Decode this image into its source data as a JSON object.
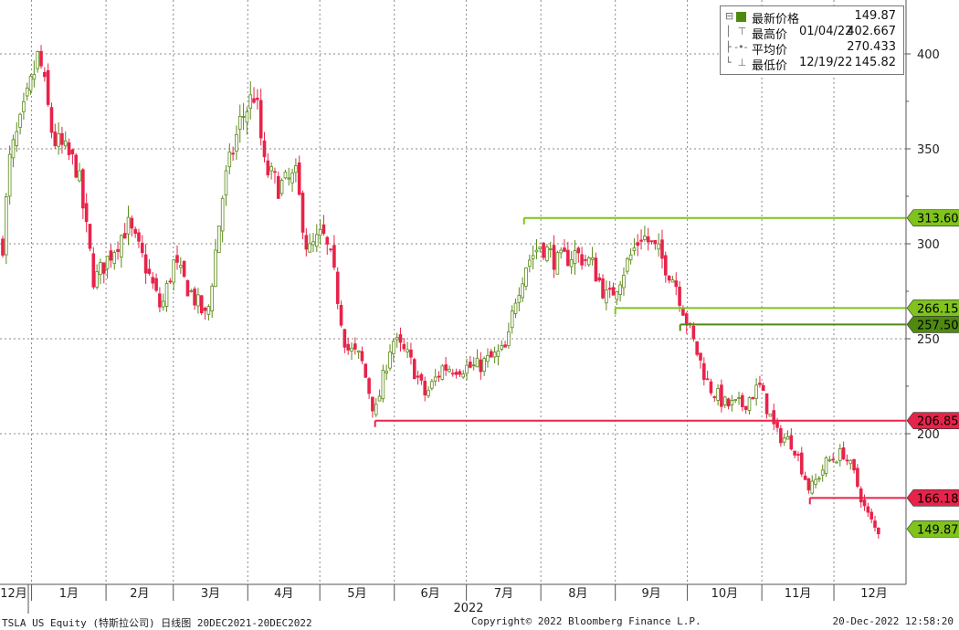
{
  "chart_data": {
    "type": "candlestick",
    "ticker_footer": "TSLA US Equity (特斯拉公司)  日线图 20DEC2021-20DEC2022",
    "copyright": "Copyright© 2022 Bloomberg Finance L.P.",
    "timestamp": "20-Dec-2022 12:58:20",
    "year_label": "2022",
    "x_ticks": [
      "12月",
      "1月",
      "2月",
      "3月",
      "4月",
      "5月",
      "6月",
      "7月",
      "8月",
      "9月",
      "10月",
      "11月",
      "12月"
    ],
    "y_ticks": [
      400,
      350,
      300,
      250,
      200
    ],
    "ylim": [
      120,
      420
    ],
    "colors": {
      "up": "#5a8a18",
      "down": "#e8234a",
      "grid": "#888888"
    },
    "legend": {
      "last_label": "最新价格",
      "last_value": "149.87",
      "high_label": "最高价",
      "high_date": "01/04/22",
      "high_value": "402.667",
      "avg_label": "平均价",
      "avg_value": "270.433",
      "low_label": "最低价",
      "low_date": "12/19/22",
      "low_value": "145.82"
    },
    "levels": [
      {
        "value": 313.607,
        "label": "313.607",
        "color": "#7fc31c",
        "from": "2022-07-25"
      },
      {
        "value": 266.15,
        "label": "266.15",
        "color": "#7fc31c",
        "from": "2022-09-01"
      },
      {
        "value": 257.5,
        "label": "257.50",
        "color": "#4f8a10",
        "from": "2022-09-28"
      },
      {
        "value": 206.857,
        "label": "206.857",
        "color": "#e8234a",
        "from": "2022-05-24"
      },
      {
        "value": 166.185,
        "label": "166.185",
        "color": "#e8234a",
        "from": "2022-11-21"
      },
      {
        "value": 149.87,
        "label": "149.87",
        "color": "#7fc31c",
        "from": null
      }
    ],
    "series_close": [
      {
        "date": "2021-12-20",
        "close": 300
      },
      {
        "date": "2021-12-23",
        "close": 345
      },
      {
        "date": "2021-12-28",
        "close": 365
      },
      {
        "date": "2022-01-04",
        "close": 400
      },
      {
        "date": "2022-01-10",
        "close": 355
      },
      {
        "date": "2022-01-14",
        "close": 350
      },
      {
        "date": "2022-01-20",
        "close": 340
      },
      {
        "date": "2022-01-27",
        "close": 280
      },
      {
        "date": "2022-02-03",
        "close": 295
      },
      {
        "date": "2022-02-10",
        "close": 310
      },
      {
        "date": "2022-02-17",
        "close": 290
      },
      {
        "date": "2022-02-24",
        "close": 265
      },
      {
        "date": "2022-03-01",
        "close": 290
      },
      {
        "date": "2022-03-08",
        "close": 275
      },
      {
        "date": "2022-03-15",
        "close": 260
      },
      {
        "date": "2022-03-22",
        "close": 330
      },
      {
        "date": "2022-03-29",
        "close": 365
      },
      {
        "date": "2022-04-04",
        "close": 380
      },
      {
        "date": "2022-04-08",
        "close": 340
      },
      {
        "date": "2022-04-14",
        "close": 330
      },
      {
        "date": "2022-04-21",
        "close": 335
      },
      {
        "date": "2022-04-26",
        "close": 295
      },
      {
        "date": "2022-05-02",
        "close": 305
      },
      {
        "date": "2022-05-06",
        "close": 290
      },
      {
        "date": "2022-05-12",
        "close": 245
      },
      {
        "date": "2022-05-18",
        "close": 240
      },
      {
        "date": "2022-05-24",
        "close": 210
      },
      {
        "date": "2022-05-31",
        "close": 250
      },
      {
        "date": "2022-06-07",
        "close": 240
      },
      {
        "date": "2022-06-14",
        "close": 220
      },
      {
        "date": "2022-06-21",
        "close": 235
      },
      {
        "date": "2022-06-28",
        "close": 235
      },
      {
        "date": "2022-07-05",
        "close": 235
      },
      {
        "date": "2022-07-12",
        "close": 240
      },
      {
        "date": "2022-07-18",
        "close": 245
      },
      {
        "date": "2022-07-21",
        "close": 270
      },
      {
        "date": "2022-07-26",
        "close": 290
      },
      {
        "date": "2022-08-01",
        "close": 300
      },
      {
        "date": "2022-08-08",
        "close": 290
      },
      {
        "date": "2022-08-15",
        "close": 295
      },
      {
        "date": "2022-08-22",
        "close": 290
      },
      {
        "date": "2022-08-29",
        "close": 270
      },
      {
        "date": "2022-09-06",
        "close": 290
      },
      {
        "date": "2022-09-12",
        "close": 305
      },
      {
        "date": "2022-09-19",
        "close": 295
      },
      {
        "date": "2022-09-26",
        "close": 280
      },
      {
        "date": "2022-10-03",
        "close": 250
      },
      {
        "date": "2022-10-10",
        "close": 225
      },
      {
        "date": "2022-10-17",
        "close": 215
      },
      {
        "date": "2022-10-24",
        "close": 215
      },
      {
        "date": "2022-10-31",
        "close": 225
      },
      {
        "date": "2022-11-07",
        "close": 200
      },
      {
        "date": "2022-11-14",
        "close": 195
      },
      {
        "date": "2022-11-21",
        "close": 170
      },
      {
        "date": "2022-11-28",
        "close": 185
      },
      {
        "date": "2022-12-05",
        "close": 190
      },
      {
        "date": "2022-12-09",
        "close": 180
      },
      {
        "date": "2022-12-14",
        "close": 160
      },
      {
        "date": "2022-12-19",
        "close": 148
      },
      {
        "date": "2022-12-20",
        "close": 149.87
      }
    ]
  }
}
